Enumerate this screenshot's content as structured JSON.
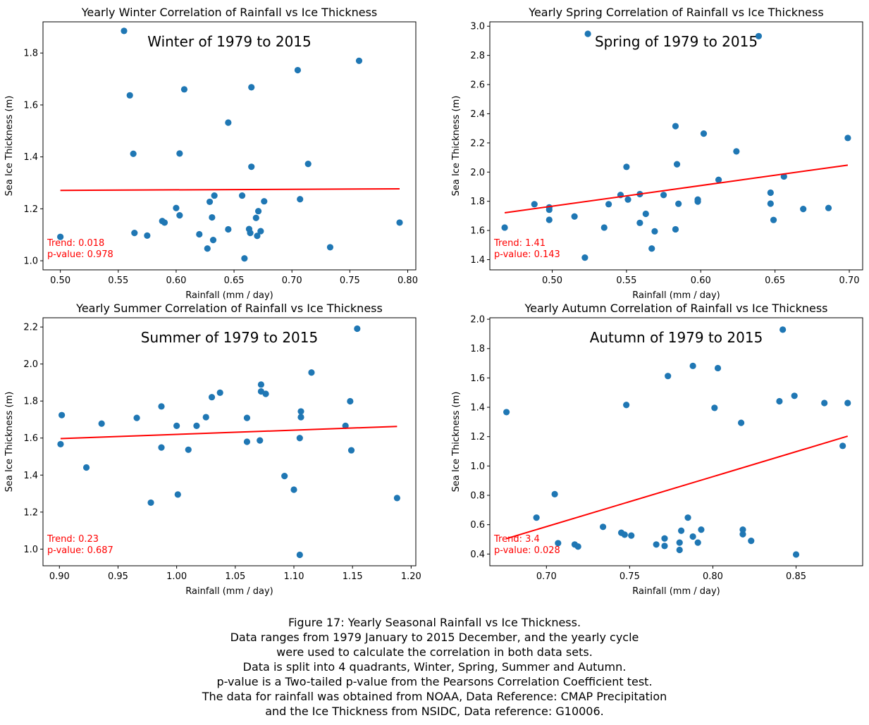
{
  "caption": {
    "lines": [
      "Figure 17: Yearly Seasonal Rainfall vs Ice Thickness.",
      "Data ranges from 1979 January to 2015 December, and the yearly cycle",
      "were used to calculate the correlation in both data sets.",
      "Data is split into 4 quadrants, Winter, Spring, Summer and Autumn.",
      "p-value is a Two-tailed p-value from the Pearsons Correlation Coefficient test.",
      "The data for rainfall was obtained from NOAA, Data Reference: CMAP Precipitation",
      "and the Ice Thickness from NSIDC, Data reference: G10006."
    ]
  },
  "colors": {
    "points": "#1f77b4",
    "trend": "#ff0000",
    "stats_text": "#ff0000",
    "axes": "#000000"
  },
  "chart_data": [
    {
      "type": "scatter",
      "title": "Yearly Winter Correlation of Rainfall vs Ice Thickness",
      "annotation": "Winter of 1979 to 2015",
      "xlabel": "Rainfall (mm / day)",
      "ylabel": "Sea Ice Thickness (m)",
      "xlim": [
        0.485,
        0.807
      ],
      "ylim": [
        0.965,
        1.92
      ],
      "xticks": [
        0.5,
        0.55,
        0.6,
        0.65,
        0.7,
        0.75,
        0.8
      ],
      "xtick_labels": [
        "0.50",
        "0.55",
        "0.60",
        "0.65",
        "0.70",
        "0.75",
        "0.80"
      ],
      "yticks": [
        1.0,
        1.2,
        1.4,
        1.6,
        1.8
      ],
      "ytick_labels": [
        "1.0",
        "1.2",
        "1.4",
        "1.6",
        "1.8"
      ],
      "trend_stat": "Trend: 0.018",
      "p_value": "p-value: 0.978",
      "trend_line": {
        "x": [
          0.5,
          0.793
        ],
        "y": [
          1.271,
          1.277
        ]
      },
      "points": [
        [
          0.5,
          1.092
        ],
        [
          0.555,
          1.885
        ],
        [
          0.56,
          1.637
        ],
        [
          0.563,
          1.412
        ],
        [
          0.564,
          1.107
        ],
        [
          0.575,
          1.097
        ],
        [
          0.588,
          1.153
        ],
        [
          0.59,
          1.147
        ],
        [
          0.6,
          1.203
        ],
        [
          0.603,
          1.413
        ],
        [
          0.603,
          1.175
        ],
        [
          0.607,
          1.66
        ],
        [
          0.62,
          1.102
        ],
        [
          0.627,
          1.047
        ],
        [
          0.629,
          1.227
        ],
        [
          0.631,
          1.167
        ],
        [
          0.632,
          1.08
        ],
        [
          0.633,
          1.251
        ],
        [
          0.645,
          1.532
        ],
        [
          0.645,
          1.121
        ],
        [
          0.657,
          1.251
        ],
        [
          0.659,
          1.009
        ],
        [
          0.663,
          1.122
        ],
        [
          0.664,
          1.107
        ],
        [
          0.665,
          1.668
        ],
        [
          0.665,
          1.362
        ],
        [
          0.669,
          1.165
        ],
        [
          0.67,
          1.096
        ],
        [
          0.671,
          1.191
        ],
        [
          0.673,
          1.114
        ],
        [
          0.676,
          1.229
        ],
        [
          0.705,
          1.734
        ],
        [
          0.707,
          1.237
        ],
        [
          0.714,
          1.373
        ],
        [
          0.733,
          1.052
        ],
        [
          0.758,
          1.77
        ],
        [
          0.793,
          1.147
        ]
      ]
    },
    {
      "type": "scatter",
      "title": "Yearly Spring Correlation of Rainfall vs Ice Thickness",
      "annotation": "Spring of 1979 to 2015",
      "xlabel": "Rainfall (mm / day)",
      "ylabel": "Sea Ice Thickness (m)",
      "xlim": [
        0.458,
        0.709
      ],
      "ylim": [
        1.33,
        3.03
      ],
      "xticks": [
        0.5,
        0.55,
        0.6,
        0.65,
        0.7
      ],
      "xtick_labels": [
        "0.50",
        "0.55",
        "0.60",
        "0.65",
        "0.70"
      ],
      "yticks": [
        1.4,
        1.6,
        1.8,
        2.0,
        2.2,
        2.4,
        2.6,
        2.8,
        3.0
      ],
      "ytick_labels": [
        "1.4",
        "1.6",
        "1.8",
        "2.0",
        "2.2",
        "2.4",
        "2.6",
        "2.8",
        "3.0"
      ],
      "trend_stat": "Trend: 1.41",
      "p_value": "p-value: 0.143",
      "trend_line": {
        "x": [
          0.468,
          0.699
        ],
        "y": [
          1.721,
          2.048
        ]
      },
      "points": [
        [
          0.468,
          1.62
        ],
        [
          0.488,
          1.78
        ],
        [
          0.498,
          1.742
        ],
        [
          0.498,
          1.758
        ],
        [
          0.498,
          1.673
        ],
        [
          0.515,
          1.696
        ],
        [
          0.522,
          1.414
        ],
        [
          0.524,
          2.948
        ],
        [
          0.535,
          1.62
        ],
        [
          0.538,
          1.78
        ],
        [
          0.546,
          1.843
        ],
        [
          0.55,
          2.036
        ],
        [
          0.551,
          1.812
        ],
        [
          0.559,
          1.849
        ],
        [
          0.559,
          1.652
        ],
        [
          0.563,
          1.714
        ],
        [
          0.567,
          1.476
        ],
        [
          0.569,
          1.594
        ],
        [
          0.575,
          1.843
        ],
        [
          0.583,
          2.315
        ],
        [
          0.583,
          1.608
        ],
        [
          0.584,
          2.054
        ],
        [
          0.585,
          1.783
        ],
        [
          0.598,
          1.812
        ],
        [
          0.598,
          1.798
        ],
        [
          0.602,
          2.264
        ],
        [
          0.612,
          1.947
        ],
        [
          0.624,
          2.142
        ],
        [
          0.639,
          2.932
        ],
        [
          0.647,
          1.784
        ],
        [
          0.647,
          1.859
        ],
        [
          0.649,
          1.672
        ],
        [
          0.656,
          1.97
        ],
        [
          0.669,
          1.747
        ],
        [
          0.686,
          1.754
        ],
        [
          0.699,
          2.234
        ]
      ]
    },
    {
      "type": "scatter",
      "title": "Yearly Summer Correlation of Rainfall vs Ice Thickness",
      "annotation": "Summer of 1979 to 2015",
      "xlabel": "Rainfall (mm / day)",
      "ylabel": "Sea Ice Thickness (m)",
      "xlim": [
        0.886,
        1.204
      ],
      "ylim": [
        0.91,
        2.25
      ],
      "xticks": [
        0.9,
        0.95,
        1.0,
        1.05,
        1.1,
        1.15,
        1.2
      ],
      "xtick_labels": [
        "0.90",
        "0.95",
        "1.00",
        "1.05",
        "1.10",
        "1.15",
        "1.20"
      ],
      "yticks": [
        1.0,
        1.2,
        1.4,
        1.6,
        1.8,
        2.0,
        2.2
      ],
      "ytick_labels": [
        "1.0",
        "1.2",
        "1.4",
        "1.6",
        "1.8",
        "2.0",
        "2.2"
      ],
      "trend_stat": "Trend: 0.23",
      "p_value": "p-value: 0.687",
      "trend_line": {
        "x": [
          0.901,
          1.188
        ],
        "y": [
          1.597,
          1.663
        ]
      },
      "points": [
        [
          0.901,
          1.567
        ],
        [
          0.902,
          1.724
        ],
        [
          0.923,
          1.441
        ],
        [
          0.936,
          1.678
        ],
        [
          0.966,
          1.709
        ],
        [
          0.978,
          1.251
        ],
        [
          0.987,
          1.771
        ],
        [
          0.987,
          1.549
        ],
        [
          1.0,
          1.666
        ],
        [
          1.001,
          1.295
        ],
        [
          1.01,
          1.537
        ],
        [
          1.017,
          1.666
        ],
        [
          1.025,
          1.713
        ],
        [
          1.03,
          1.821
        ],
        [
          1.037,
          1.845
        ],
        [
          1.06,
          1.709
        ],
        [
          1.06,
          1.58
        ],
        [
          1.071,
          1.587
        ],
        [
          1.072,
          1.889
        ],
        [
          1.072,
          1.852
        ],
        [
          1.076,
          1.839
        ],
        [
          1.092,
          1.395
        ],
        [
          1.1,
          1.321
        ],
        [
          1.105,
          0.969
        ],
        [
          1.105,
          1.6
        ],
        [
          1.106,
          1.713
        ],
        [
          1.106,
          1.744
        ],
        [
          1.115,
          1.954
        ],
        [
          1.144,
          1.666
        ],
        [
          1.148,
          1.799
        ],
        [
          1.149,
          1.534
        ],
        [
          1.154,
          2.191
        ],
        [
          1.188,
          1.276
        ]
      ]
    },
    {
      "type": "scatter",
      "title": "Yearly Autumn Correlation of Rainfall vs Ice Thickness",
      "annotation": "Autumn of 1979 to 2015",
      "xlabel": "Rainfall (mm / day)",
      "ylabel": "Sea Ice Thickness (m)",
      "xlim": [
        0.666,
        0.89
      ],
      "ylim": [
        0.32,
        2.01
      ],
      "xticks": [
        0.7,
        0.75,
        0.8,
        0.85
      ],
      "xtick_labels": [
        "0.70",
        "0.75",
        "0.80",
        "0.85"
      ],
      "yticks": [
        0.4,
        0.6,
        0.8,
        1.0,
        1.2,
        1.4,
        1.6,
        1.8,
        2.0
      ],
      "ytick_labels": [
        "0.4",
        "0.6",
        "0.8",
        "1.0",
        "1.2",
        "1.4",
        "1.6",
        "1.8",
        "2.0"
      ],
      "trend_stat": "Trend: 3.4",
      "p_value": "p-value: 0.028",
      "trend_line": {
        "x": [
          0.676,
          0.881
        ],
        "y": [
          0.505,
          1.203
        ]
      },
      "points": [
        [
          0.676,
          1.367
        ],
        [
          0.694,
          0.648
        ],
        [
          0.705,
          0.808
        ],
        [
          0.707,
          0.474
        ],
        [
          0.717,
          0.465
        ],
        [
          0.719,
          0.451
        ],
        [
          0.734,
          0.585
        ],
        [
          0.745,
          0.545
        ],
        [
          0.747,
          0.532
        ],
        [
          0.748,
          1.416
        ],
        [
          0.751,
          0.526
        ],
        [
          0.766,
          0.465
        ],
        [
          0.771,
          0.455
        ],
        [
          0.771,
          0.506
        ],
        [
          0.773,
          1.613
        ],
        [
          0.78,
          0.478
        ],
        [
          0.78,
          0.428
        ],
        [
          0.781,
          0.559
        ],
        [
          0.785,
          0.648
        ],
        [
          0.788,
          1.682
        ],
        [
          0.788,
          0.519
        ],
        [
          0.791,
          0.478
        ],
        [
          0.793,
          0.566
        ],
        [
          0.801,
          1.396
        ],
        [
          0.803,
          1.667
        ],
        [
          0.817,
          1.294
        ],
        [
          0.818,
          0.566
        ],
        [
          0.818,
          0.535
        ],
        [
          0.823,
          0.49
        ],
        [
          0.84,
          1.441
        ],
        [
          0.842,
          1.929
        ],
        [
          0.849,
          1.478
        ],
        [
          0.85,
          0.397
        ],
        [
          0.867,
          1.429
        ],
        [
          0.878,
          1.137
        ],
        [
          0.881,
          1.429
        ]
      ]
    }
  ]
}
